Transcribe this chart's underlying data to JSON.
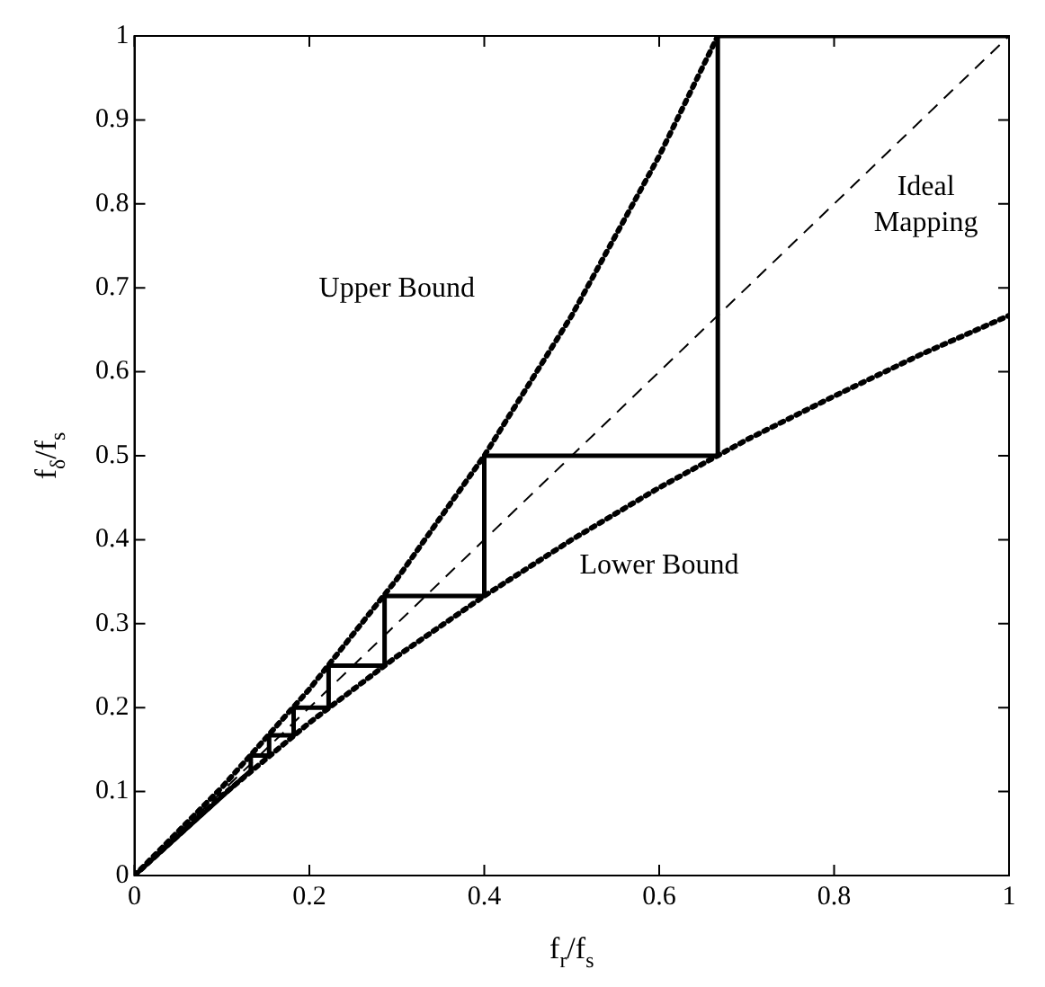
{
  "chart_data": {
    "type": "line",
    "xlabel": "f$_{r}$/f$_{s}$",
    "ylabel": "f$_{δ}$/f$_{s}$",
    "xlim": [
      0,
      1
    ],
    "ylim": [
      0,
      1
    ],
    "xticks": [
      0,
      0.2,
      0.4,
      0.6,
      0.8,
      1
    ],
    "yticks": [
      0,
      0.1,
      0.2,
      0.3,
      0.4,
      0.5,
      0.6,
      0.7,
      0.8,
      0.9,
      1
    ],
    "marker": "none",
    "series": [
      {
        "color": "#000000",
        "line_style": "dotted",
        "x": [
          0,
          0.1,
          0.2,
          0.3,
          0.4,
          0.5,
          0.6,
          0.667
        ],
        "values": [
          0,
          0.105,
          0.222,
          0.353,
          0.5,
          0.667,
          0.857,
          1
        ]
      },
      {
        "color": "#000000",
        "line_style": "dotted",
        "x": [
          0,
          0.1,
          0.2,
          0.3,
          0.4,
          0.5,
          0.6,
          0.7,
          0.8,
          0.9,
          1
        ],
        "values": [
          0,
          0.095,
          0.182,
          0.261,
          0.333,
          0.4,
          0.462,
          0.519,
          0.571,
          0.621,
          0.667
        ]
      },
      {
        "color": "#000000",
        "line_style": "dashed",
        "x": [
          0,
          1
        ],
        "values": [
          0,
          1
        ]
      },
      {
        "color": "#000000",
        "line_style": "solid",
        "x": [
          0,
          0.133,
          0.133,
          0.154,
          0.154,
          0.182,
          0.182,
          0.222,
          0.222,
          0.286,
          0.286,
          0.4,
          0.4,
          0.667,
          0.667,
          1
        ],
        "values": [
          0,
          0.125,
          0.143,
          0.143,
          0.167,
          0.167,
          0.2,
          0.2,
          0.25,
          0.25,
          0.333,
          0.333,
          0.5,
          0.5,
          1,
          1
        ]
      }
    ],
    "annotations": [
      "Upper Bound",
      "Ideal Mapping",
      "Lower Bound"
    ]
  }
}
